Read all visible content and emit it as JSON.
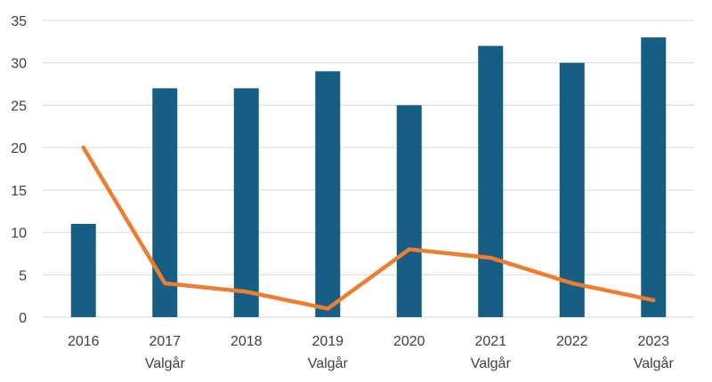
{
  "chart_data": {
    "type": "bar",
    "categories": [
      "2016",
      "2017",
      "2018",
      "2019",
      "2020",
      "2021",
      "2022",
      "2023"
    ],
    "category_sublabels": [
      "",
      "Valgår",
      "",
      "Valgår",
      "",
      "Valgår",
      "",
      "Valgår"
    ],
    "series": [
      {
        "type": "bar",
        "values": [
          11,
          27,
          27,
          29,
          25,
          32,
          30,
          33
        ],
        "color": "#165e83"
      },
      {
        "type": "line",
        "values": [
          20,
          4,
          3,
          1,
          8,
          7,
          4,
          2
        ],
        "color": "#ed7d31"
      }
    ],
    "title": "",
    "xlabel": "",
    "ylabel": "",
    "ylim": [
      0,
      35
    ],
    "yticks": [
      0,
      5,
      10,
      15,
      20,
      25,
      30,
      35
    ],
    "grid": true,
    "legend": "none"
  }
}
